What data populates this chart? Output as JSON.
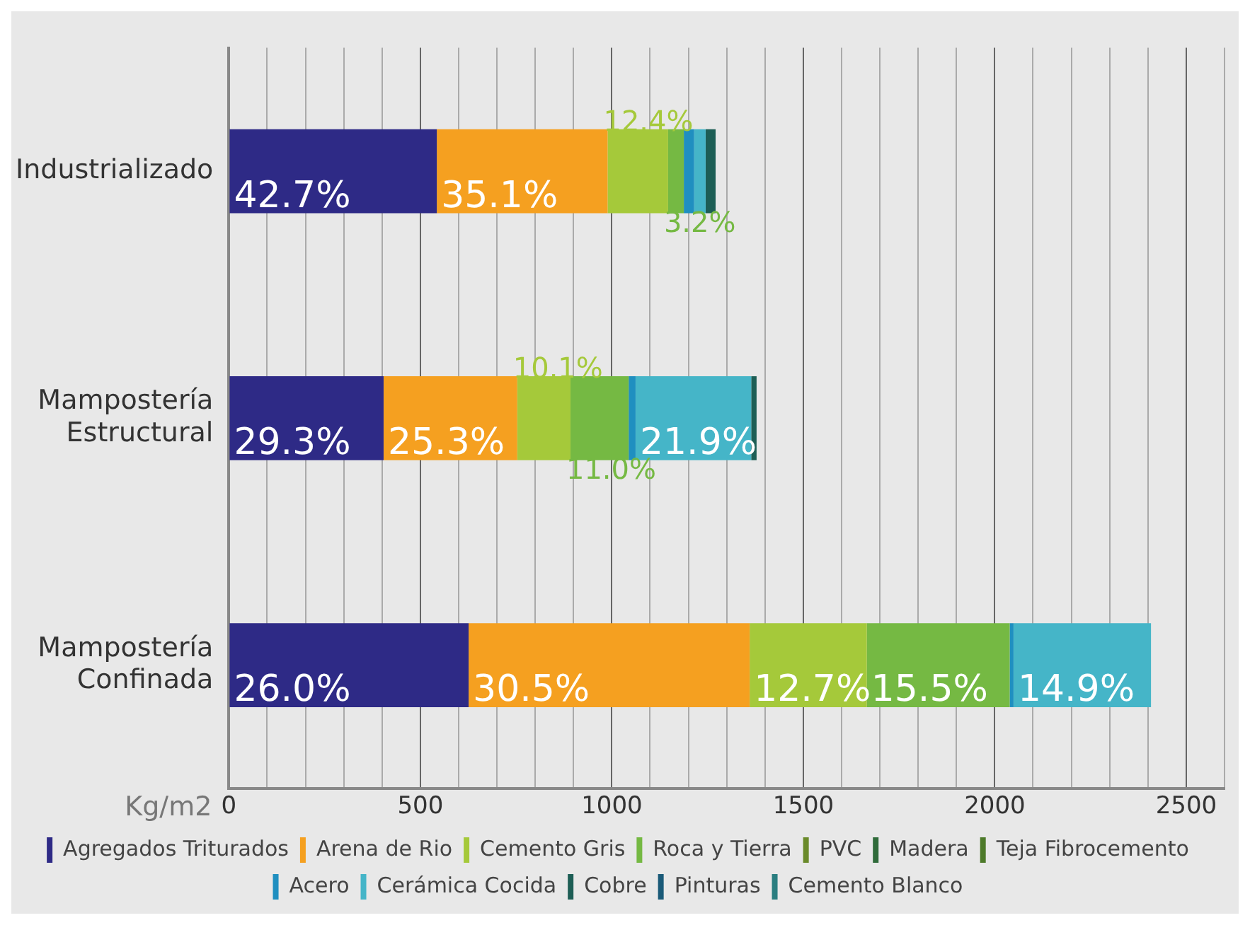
{
  "chart_data": {
    "type": "bar",
    "orientation": "horizontal",
    "stacked": true,
    "xlabel": "Kg/m2",
    "categories": [
      "Industrializado",
      "Mampostería Estructural",
      "Mampostería Confinada"
    ],
    "series": [
      {
        "name": "Agregados Triturados",
        "color": "#2e2a86",
        "values": [
          543,
          404,
          626
        ]
      },
      {
        "name": "Arena de Rio",
        "color": "#f5a020",
        "values": [
          446,
          349,
          734
        ]
      },
      {
        "name": "Cemento Gris",
        "color": "#a5c93a",
        "values": [
          158,
          139,
          306
        ]
      },
      {
        "name": "Roca y Tierra",
        "color": "#75b943",
        "values": [
          41,
          152,
          373
        ]
      },
      {
        "name": "PVC",
        "color": "#6a8a2a",
        "values": [
          null,
          null,
          null
        ]
      },
      {
        "name": "Madera",
        "color": "#2f6b3a",
        "values": [
          null,
          null,
          null
        ]
      },
      {
        "name": "Teja Fibrocemento",
        "color": "#4d7a2a",
        "values": [
          null,
          null,
          null
        ]
      },
      {
        "name": "Acero",
        "color": "#1f8fc0",
        "values": [
          27,
          18,
          10
        ]
      },
      {
        "name": "Cerámica Cocida",
        "color": "#45b5c8",
        "values": [
          30,
          302,
          359
        ]
      },
      {
        "name": "Cobre",
        "color": "#1d5e55",
        "values": [
          26,
          14,
          null
        ]
      },
      {
        "name": "Pinturas",
        "color": "#1a5a78",
        "values": [
          null,
          null,
          null
        ]
      },
      {
        "name": "Cemento Blanco",
        "color": "#2a7e80",
        "values": [
          null,
          null,
          null
        ]
      }
    ],
    "xlim": [
      0,
      2600
    ],
    "xticks": [
      0,
      {
        "value": 100,
        "label": null
      },
      {
        "value": 200,
        "label": null
      },
      {
        "value": 300,
        "label": null
      },
      {
        "value": 400,
        "label": null
      },
      500,
      {
        "value": 600,
        "label": null
      },
      {
        "value": 700,
        "label": null
      },
      {
        "value": 800,
        "label": null
      },
      {
        "value": 900,
        "label": null
      },
      1000,
      {
        "value": 1100,
        "label": null
      },
      {
        "value": 1200,
        "label": null
      },
      {
        "value": 1300,
        "label": null
      },
      {
        "value": 1400,
        "label": null
      },
      1500,
      {
        "value": 1600,
        "label": null
      },
      {
        "value": 1700,
        "label": null
      },
      {
        "value": 1800,
        "label": null
      },
      {
        "value": 1900,
        "label": null
      },
      2000,
      {
        "value": 2100,
        "label": null
      },
      {
        "value": 2200,
        "label": null
      },
      {
        "value": 2300,
        "label": null
      },
      {
        "value": 2400,
        "label": null
      },
      2500,
      {
        "value": 2600,
        "label": null
      }
    ],
    "annotations": [
      {
        "text": "42.7%",
        "x": 0,
        "y": "Industrializado"
      },
      {
        "text": "35.1%",
        "x": 543,
        "y": "Industrializado"
      },
      {
        "text": "12.4%",
        "x": 989,
        "y": "Industrializado"
      },
      {
        "text": "3.2%",
        "x": 1147,
        "y": "Industrializado"
      },
      {
        "text": "29.3%",
        "x": 0,
        "y": "Mampostería Estructural"
      },
      {
        "text": "25.3%",
        "x": 404,
        "y": "Mampostería Estructural"
      },
      {
        "text": "10.1%",
        "x": 753,
        "y": "Mampostería Estructural"
      },
      {
        "text": "11.0%",
        "x": 892,
        "y": "Mampostería Estructural"
      },
      {
        "text": "21.9%",
        "x": 1062,
        "y": "Mampostería Estructural"
      },
      {
        "text": "26.0%",
        "x": 0,
        "y": "Mampostería Confinada"
      },
      {
        "text": "30.5%",
        "x": 626,
        "y": "Mampostería Confinada"
      },
      {
        "text": "12.7%",
        "x": 1360,
        "y": "Mampostería Confinada"
      },
      {
        "text": "15.5%",
        "x": 1666,
        "y": "Mampostería Confinada"
      },
      {
        "text": "14.9%",
        "x": 2049,
        "y": "Mampostería Confinada"
      }
    ],
    "grid": "x",
    "legend": "bottom"
  }
}
